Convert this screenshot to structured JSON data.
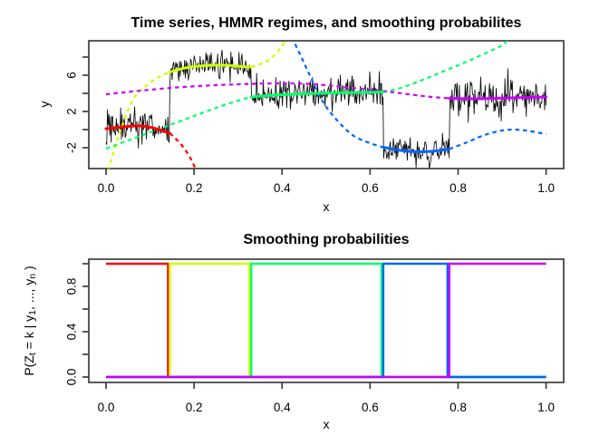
{
  "window": {
    "background": "#ffffff",
    "box_color": "#3d3d3d"
  },
  "chart_data": [
    {
      "id": "time-series-panel",
      "type": "line",
      "title": "Time series, HMMR regimes, and smoothing probabilites",
      "xlabel": "x",
      "ylabel": "y",
      "xlim": [
        0,
        1
      ],
      "ylim": [
        -4.2,
        9.8
      ],
      "grid": false,
      "x_ticks": [
        0,
        0.2,
        0.4,
        0.6,
        0.8,
        1
      ],
      "x_tick_labels": [
        "0.0",
        "0.2",
        "0.4",
        "0.6",
        "0.8",
        "1.0"
      ],
      "y_ticks": [
        -2,
        0,
        2,
        4,
        6,
        8
      ],
      "y_tick_labels": [
        "-2",
        "",
        "2",
        "",
        "6",
        ""
      ],
      "observed_series": {
        "color": "#0a0a0a",
        "n": 600,
        "seed": 42,
        "regimes": [
          {
            "segment": [
              0,
              0.145
            ],
            "mean": 0.1,
            "sd": 1.0
          },
          {
            "segment": [
              0.145,
              0.33
            ],
            "mean": 7.0,
            "sd": 0.85
          },
          {
            "segment": [
              0.33,
              0.63
            ],
            "mean": 4.0,
            "sd": 0.9
          },
          {
            "segment": [
              0.63,
              0.78
            ],
            "mean": -2.3,
            "sd": 0.75
          },
          {
            "segment": [
              0.78,
              1.0
            ],
            "mean": 3.5,
            "sd": 1.05
          }
        ]
      },
      "regime_curves": [
        {
          "name": "regime-1-red",
          "color": "#FF0000",
          "segment": [
            0,
            0.145
          ],
          "points": [
            [
              0,
              0.1
            ],
            [
              0.05,
              0.35
            ],
            [
              0.08,
              0.4
            ],
            [
              0.11,
              0.15
            ],
            [
              0.145,
              -0.4
            ],
            [
              0.17,
              -1.6
            ],
            [
              0.19,
              -3.0
            ],
            [
              0.205,
              -4.5
            ]
          ]
        },
        {
          "name": "regime-2-yellow",
          "color": "#CCFF00",
          "segment": [
            0.145,
            0.33
          ],
          "points": [
            [
              0.005,
              -4.5
            ],
            [
              0.03,
              -0.5
            ],
            [
              0.06,
              3.2
            ],
            [
              0.09,
              4.8
            ],
            [
              0.12,
              5.8
            ],
            [
              0.145,
              6.35
            ],
            [
              0.18,
              6.8
            ],
            [
              0.22,
              7.05
            ],
            [
              0.27,
              7.1
            ],
            [
              0.31,
              6.95
            ],
            [
              0.33,
              6.9
            ],
            [
              0.36,
              7.4
            ],
            [
              0.38,
              8.1
            ],
            [
              0.4,
              9.2
            ],
            [
              0.412,
              10.2
            ]
          ]
        },
        {
          "name": "regime-3-green",
          "color": "#00FF66",
          "segment": [
            0.33,
            0.63
          ],
          "points": [
            [
              0,
              -2.1
            ],
            [
              0.05,
              -1.2
            ],
            [
              0.1,
              -0.3
            ],
            [
              0.15,
              0.6
            ],
            [
              0.2,
              1.5
            ],
            [
              0.25,
              2.4
            ],
            [
              0.3,
              3.2
            ],
            [
              0.33,
              3.6
            ],
            [
              0.38,
              3.8
            ],
            [
              0.45,
              3.95
            ],
            [
              0.52,
              4.05
            ],
            [
              0.58,
              4.1
            ],
            [
              0.63,
              4.15
            ],
            [
              0.67,
              4.6
            ],
            [
              0.72,
              5.5
            ],
            [
              0.77,
              6.5
            ],
            [
              0.82,
              7.5
            ],
            [
              0.87,
              8.6
            ],
            [
              0.9,
              9.3
            ],
            [
              0.92,
              10.2
            ]
          ]
        },
        {
          "name": "regime-4-blue",
          "color": "#0066FF",
          "segment": [
            0.63,
            0.78
          ],
          "points": [
            [
              0.422,
              10.2
            ],
            [
              0.44,
              8.4
            ],
            [
              0.46,
              6.3
            ],
            [
              0.49,
              3.3
            ],
            [
              0.52,
              1.3
            ],
            [
              0.56,
              -0.6
            ],
            [
              0.6,
              -1.5
            ],
            [
              0.63,
              -1.95
            ],
            [
              0.67,
              -2.3
            ],
            [
              0.71,
              -2.45
            ],
            [
              0.75,
              -2.35
            ],
            [
              0.78,
              -2.15
            ],
            [
              0.82,
              -1.4
            ],
            [
              0.86,
              -0.6
            ],
            [
              0.9,
              -0.1
            ],
            [
              0.93,
              0.0
            ],
            [
              0.96,
              -0.15
            ],
            [
              1.0,
              -0.5
            ]
          ]
        },
        {
          "name": "regime-5-magenta",
          "color": "#CC00FF",
          "segment": [
            0.78,
            1.0
          ],
          "points": [
            [
              0,
              3.9
            ],
            [
              0.08,
              4.3
            ],
            [
              0.16,
              4.65
            ],
            [
              0.25,
              4.9
            ],
            [
              0.33,
              5.05
            ],
            [
              0.4,
              5.1
            ],
            [
              0.46,
              5.05
            ],
            [
              0.52,
              4.8
            ],
            [
              0.58,
              4.5
            ],
            [
              0.63,
              4.25
            ],
            [
              0.68,
              3.95
            ],
            [
              0.73,
              3.65
            ],
            [
              0.78,
              3.45
            ],
            [
              0.85,
              3.4
            ],
            [
              0.92,
              3.5
            ],
            [
              1.0,
              3.6
            ]
          ]
        }
      ],
      "line_styles": {
        "mean_solid_width": 3,
        "dashed_width": 2.2,
        "dash_pattern": "4.5 4",
        "observed_width": 0.85
      }
    },
    {
      "id": "smoothing-panel",
      "type": "step",
      "title": "Smoothing probabilities",
      "xlabel": "x",
      "ylabel_parts": {
        "p1": "P(Z",
        "sub1": "t",
        "p2": " = k | y",
        "sub2": "1",
        "p3": ", ..., y",
        "sub3": "n",
        "p4": " )"
      },
      "xlim": [
        0,
        1
      ],
      "ylim": [
        0,
        1
      ],
      "grid": false,
      "x_ticks": [
        0,
        0.2,
        0.4,
        0.6,
        0.8,
        1
      ],
      "x_tick_labels": [
        "0.0",
        "0.2",
        "0.4",
        "0.6",
        "0.8",
        "1.0"
      ],
      "y_ticks": [
        0,
        0.2,
        0.4,
        0.6,
        0.8,
        1
      ],
      "y_tick_labels": [
        "0.0",
        "",
        "0.4",
        "",
        "0.8",
        ""
      ],
      "transitions": [
        0.145,
        0.33,
        0.63,
        0.78
      ],
      "states": [
        {
          "name": "state-1",
          "color": "#FF0000",
          "segment": [
            0,
            0.145
          ]
        },
        {
          "name": "state-2",
          "color": "#CCFF00",
          "segment": [
            0.145,
            0.33
          ]
        },
        {
          "name": "state-3",
          "color": "#00FF66",
          "segment": [
            0.33,
            0.63
          ]
        },
        {
          "name": "state-4",
          "color": "#0066FF",
          "segment": [
            0.63,
            0.78
          ]
        },
        {
          "name": "state-5",
          "color": "#CC00FF",
          "segment": [
            0.78,
            1.0
          ]
        }
      ],
      "step_width": 2.4
    }
  ]
}
